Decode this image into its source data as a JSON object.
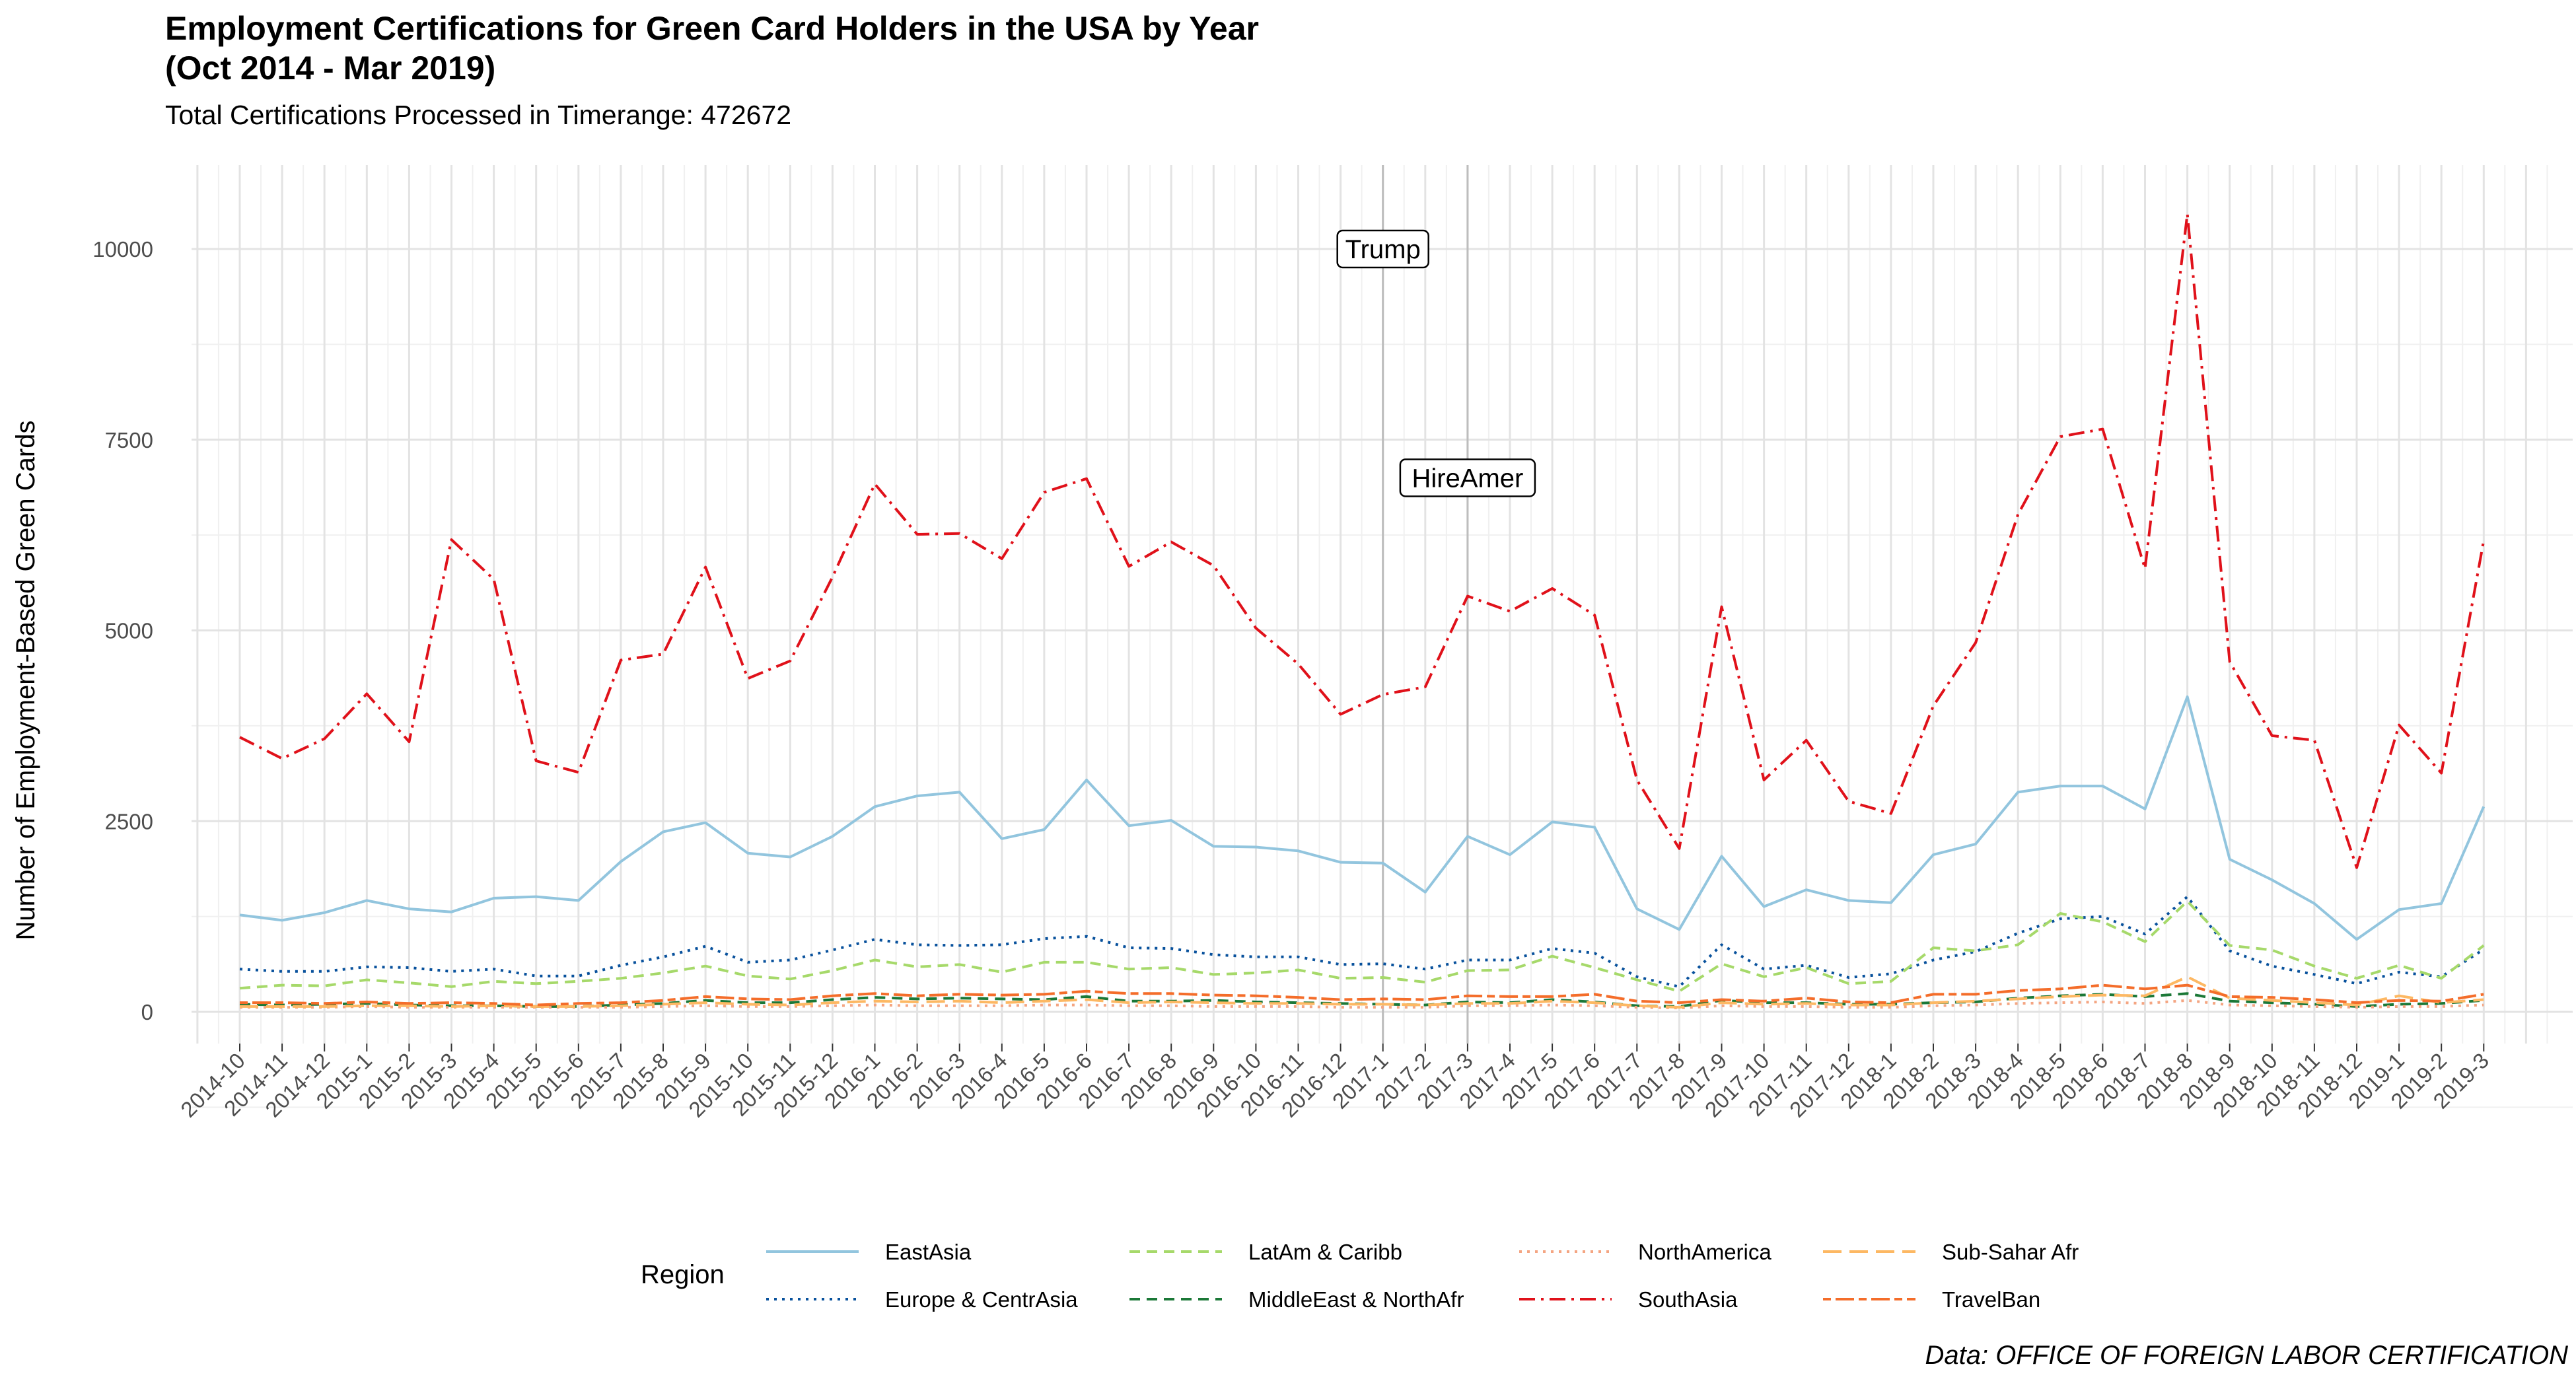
{
  "chart_data": {
    "type": "line",
    "title_line1": "Employment Certifications for Green Card Holders in the USA by Year",
    "title_line2": "(Oct 2014 - Mar 2019)",
    "subtitle": "Total Certifications Processed in Timerange: 472672",
    "ylabel": "Number of Employment-Based Green Cards",
    "caption": "Data: OFFICE OF FOREIGN LABOR CERTIFICATION",
    "legend_title": "Region",
    "legend_placement": "bottom",
    "grid": true,
    "ylim": [
      -350,
      10700
    ],
    "yticks": [
      0,
      2500,
      5000,
      7500,
      10000
    ],
    "categories": [
      "2014-10",
      "2014-11",
      "2014-12",
      "2015-1",
      "2015-2",
      "2015-3",
      "2015-4",
      "2015-5",
      "2015-6",
      "2015-7",
      "2015-8",
      "2015-9",
      "2015-10",
      "2015-11",
      "2015-12",
      "2016-1",
      "2016-2",
      "2016-3",
      "2016-4",
      "2016-5",
      "2016-6",
      "2016-7",
      "2016-8",
      "2016-9",
      "2016-10",
      "2016-11",
      "2016-12",
      "2017-1",
      "2017-2",
      "2017-3",
      "2017-4",
      "2017-5",
      "2017-6",
      "2017-7",
      "2017-8",
      "2017-9",
      "2017-10",
      "2017-11",
      "2017-12",
      "2018-1",
      "2018-2",
      "2018-3",
      "2018-4",
      "2018-5",
      "2018-6",
      "2018-7",
      "2018-8",
      "2018-9",
      "2018-10",
      "2018-11",
      "2018-12",
      "2019-1",
      "2019-2",
      "2019-3"
    ],
    "annotations": [
      {
        "label": "Trump",
        "x": "2017-1",
        "y": 10000
      },
      {
        "label": "HireAmer",
        "x": "2017-3",
        "y": 7000
      }
    ],
    "series": [
      {
        "name": "EastAsia",
        "color": "#92C5DE",
        "dash": "solid",
        "values": [
          1270,
          1200,
          1300,
          1460,
          1350,
          1310,
          1490,
          1510,
          1460,
          1970,
          2360,
          2480,
          2080,
          2030,
          2300,
          2690,
          2830,
          2880,
          2270,
          2390,
          3040,
          2440,
          2510,
          2170,
          2160,
          2110,
          1960,
          1950,
          1570,
          2300,
          2060,
          2490,
          2420,
          1350,
          1080,
          2040,
          1380,
          1600,
          1460,
          1430,
          2060,
          2200,
          2880,
          2960,
          2960,
          2660,
          4130,
          2000,
          1730,
          1420,
          950,
          1340,
          1420,
          2690
        ]
      },
      {
        "name": "Europe & CentrAsia",
        "color": "#08519C",
        "dash": "dotted",
        "values": [
          560,
          530,
          530,
          590,
          580,
          530,
          560,
          470,
          470,
          610,
          720,
          860,
          650,
          680,
          810,
          950,
          880,
          870,
          880,
          960,
          990,
          840,
          830,
          750,
          720,
          720,
          620,
          630,
          560,
          680,
          680,
          830,
          770,
          460,
          330,
          880,
          560,
          610,
          450,
          500,
          680,
          790,
          1030,
          1220,
          1250,
          1020,
          1510,
          800,
          600,
          490,
          370,
          520,
          460,
          820
        ]
      },
      {
        "name": "LatAm & Caribb",
        "color": "#A6D96A",
        "dash": "dashed",
        "values": [
          310,
          350,
          340,
          420,
          380,
          330,
          400,
          370,
          400,
          440,
          510,
          600,
          470,
          430,
          540,
          680,
          590,
          620,
          520,
          650,
          650,
          560,
          580,
          490,
          510,
          550,
          440,
          450,
          390,
          540,
          550,
          730,
          580,
          420,
          270,
          630,
          460,
          580,
          370,
          400,
          840,
          800,
          880,
          1290,
          1180,
          920,
          1450,
          870,
          810,
          600,
          440,
          610,
          440,
          870
        ]
      },
      {
        "name": "MiddleEast & NorthAfr",
        "color": "#1B7837",
        "dash": "dashed",
        "values": [
          100,
          90,
          100,
          110,
          90,
          80,
          80,
          70,
          70,
          90,
          110,
          150,
          120,
          120,
          160,
          190,
          170,
          180,
          170,
          160,
          200,
          140,
          140,
          150,
          130,
          120,
          110,
          100,
          90,
          130,
          120,
          160,
          130,
          80,
          70,
          150,
          120,
          120,
          100,
          100,
          120,
          130,
          180,
          210,
          230,
          200,
          240,
          140,
          120,
          100,
          70,
          100,
          110,
          150
        ]
      },
      {
        "name": "NorthAmerica",
        "color": "#F4A582",
        "dash": "dotted",
        "values": [
          60,
          60,
          60,
          70,
          60,
          60,
          60,
          60,
          60,
          60,
          70,
          80,
          70,
          70,
          80,
          90,
          80,
          80,
          80,
          90,
          90,
          80,
          80,
          70,
          70,
          70,
          60,
          60,
          60,
          80,
          80,
          90,
          80,
          60,
          50,
          80,
          70,
          70,
          60,
          60,
          80,
          90,
          110,
          120,
          130,
          110,
          150,
          90,
          80,
          70,
          60,
          70,
          70,
          90
        ]
      },
      {
        "name": "SouthAsia",
        "color": "#E0111A",
        "dash": "dashdot",
        "values": [
          3600,
          3320,
          3580,
          4170,
          3540,
          6190,
          5670,
          3290,
          3140,
          4610,
          4690,
          5830,
          4370,
          4600,
          5700,
          6920,
          6260,
          6270,
          5940,
          6810,
          6990,
          5840,
          6160,
          5850,
          5030,
          4560,
          3900,
          4160,
          4260,
          5450,
          5250,
          5550,
          5200,
          3040,
          2140,
          5310,
          3040,
          3560,
          2760,
          2600,
          4010,
          4840,
          6520,
          7540,
          7640,
          5810,
          10460,
          4590,
          3620,
          3560,
          1890,
          3760,
          3130,
          6180
        ]
      },
      {
        "name": "Sub-Sahar Afr",
        "color": "#FDB863",
        "dash": "longdash",
        "values": [
          70,
          70,
          70,
          80,
          80,
          70,
          80,
          70,
          70,
          80,
          100,
          120,
          100,
          90,
          120,
          140,
          130,
          140,
          120,
          140,
          160,
          120,
          130,
          120,
          110,
          110,
          100,
          100,
          90,
          110,
          110,
          140,
          120,
          80,
          60,
          120,
          100,
          110,
          90,
          90,
          120,
          140,
          170,
          200,
          220,
          210,
          460,
          180,
          150,
          120,
          90,
          210,
          120,
          160
        ]
      },
      {
        "name": "TravelBan",
        "color": "#F46D2A",
        "dash": "twodash",
        "values": [
          120,
          120,
          110,
          130,
          110,
          120,
          110,
          90,
          110,
          120,
          150,
          200,
          170,
          160,
          210,
          240,
          210,
          230,
          220,
          230,
          270,
          240,
          240,
          220,
          210,
          190,
          160,
          170,
          160,
          210,
          200,
          200,
          230,
          140,
          120,
          160,
          140,
          180,
          130,
          120,
          230,
          230,
          280,
          300,
          350,
          300,
          350,
          200,
          190,
          160,
          120,
          150,
          140,
          230
        ]
      }
    ]
  }
}
